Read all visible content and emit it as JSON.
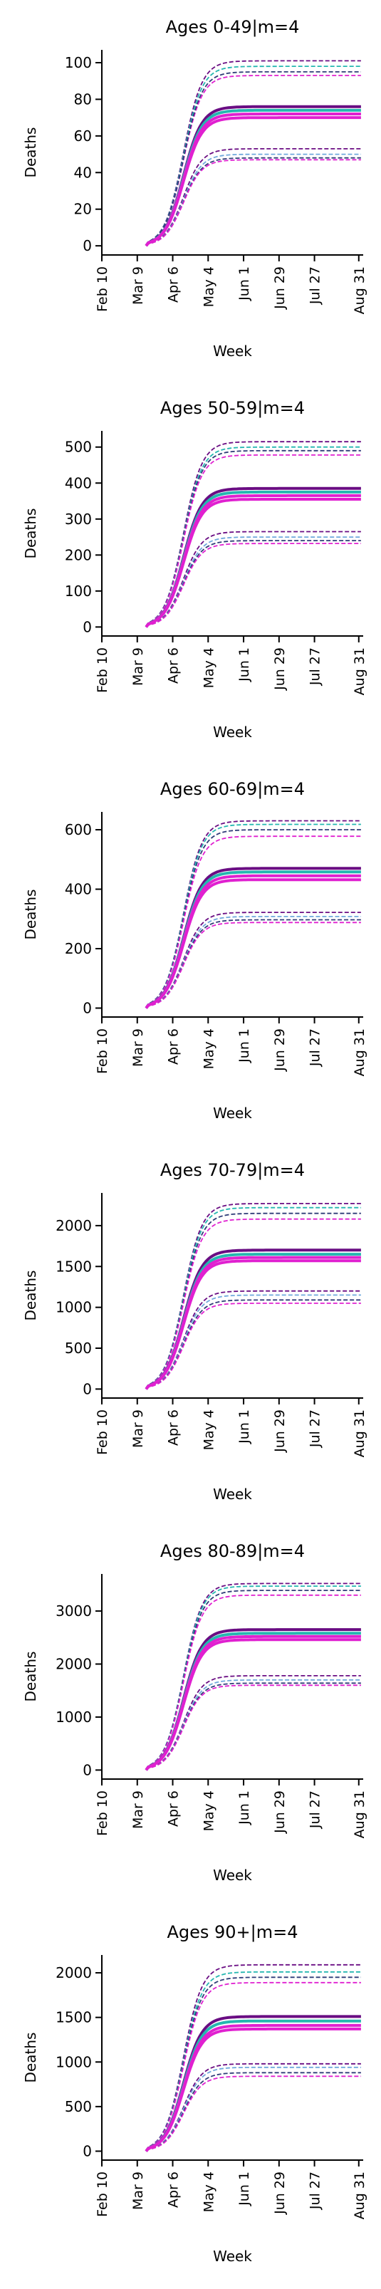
{
  "week_axis": {
    "xlabel": "Week",
    "tick_labels": [
      "Feb 10",
      "Mar 9",
      "Apr 6",
      "May 4",
      "Jun 1",
      "Jun 29",
      "Jul 27",
      "Aug 31"
    ],
    "tick_weeks": [
      0,
      4,
      8,
      12,
      16,
      20,
      24,
      29
    ],
    "xlim": [
      0,
      29.5
    ]
  },
  "colors": {
    "purple": "#6a0d83",
    "magenta": "#e020d0",
    "teal": "#25b7b0",
    "darkblue": "#2f3c78",
    "lightblue": "#6fa8dc"
  },
  "chart_data": [
    {
      "type": "line",
      "title": "Ages 0-49|m=4",
      "ylabel": "Deaths",
      "xlabel": "Week",
      "ylim": [
        -5,
        107
      ],
      "yticks": [
        0,
        20,
        40,
        60,
        80,
        100
      ],
      "series": [
        {
          "style": "solid",
          "color": "purple",
          "plateau": 76
        },
        {
          "style": "solid",
          "color": "teal",
          "plateau": 74
        },
        {
          "style": "solid",
          "color": "magenta",
          "plateau": 72
        },
        {
          "style": "solid",
          "color": "magenta",
          "plateau": 70
        },
        {
          "style": "dashed",
          "color": "purple",
          "plateau": 101
        },
        {
          "style": "dashed",
          "color": "teal",
          "plateau": 98
        },
        {
          "style": "dashed",
          "color": "magenta",
          "plateau": 93
        },
        {
          "style": "dashed",
          "color": "darkblue",
          "plateau": 95
        },
        {
          "style": "dashed",
          "color": "purple",
          "plateau": 53
        },
        {
          "style": "dashed",
          "color": "lightblue",
          "plateau": 50
        },
        {
          "style": "dashed",
          "color": "darkblue",
          "plateau": 48
        },
        {
          "style": "dashed",
          "color": "magenta",
          "plateau": 47
        }
      ]
    },
    {
      "type": "line",
      "title": "Ages 50-59|m=4",
      "ylabel": "Deaths",
      "xlabel": "Week",
      "ylim": [
        -25,
        545
      ],
      "yticks": [
        0,
        100,
        200,
        300,
        400,
        500
      ],
      "series": [
        {
          "style": "solid",
          "color": "purple",
          "plateau": 385
        },
        {
          "style": "solid",
          "color": "teal",
          "plateau": 375
        },
        {
          "style": "solid",
          "color": "magenta",
          "plateau": 365
        },
        {
          "style": "solid",
          "color": "magenta",
          "plateau": 355
        },
        {
          "style": "dashed",
          "color": "purple",
          "plateau": 515
        },
        {
          "style": "dashed",
          "color": "teal",
          "plateau": 500
        },
        {
          "style": "dashed",
          "color": "darkblue",
          "plateau": 490
        },
        {
          "style": "dashed",
          "color": "magenta",
          "plateau": 478
        },
        {
          "style": "dashed",
          "color": "purple",
          "plateau": 265
        },
        {
          "style": "dashed",
          "color": "lightblue",
          "plateau": 250
        },
        {
          "style": "dashed",
          "color": "darkblue",
          "plateau": 240
        },
        {
          "style": "dashed",
          "color": "magenta",
          "plateau": 232
        }
      ]
    },
    {
      "type": "line",
      "title": "Ages 60-69|m=4",
      "ylabel": "Deaths",
      "xlabel": "Week",
      "ylim": [
        -30,
        660
      ],
      "yticks": [
        0,
        200,
        400,
        600
      ],
      "series": [
        {
          "style": "solid",
          "color": "purple",
          "plateau": 470
        },
        {
          "style": "solid",
          "color": "teal",
          "plateau": 458
        },
        {
          "style": "solid",
          "color": "magenta",
          "plateau": 445
        },
        {
          "style": "solid",
          "color": "magenta",
          "plateau": 432
        },
        {
          "style": "dashed",
          "color": "purple",
          "plateau": 630
        },
        {
          "style": "dashed",
          "color": "teal",
          "plateau": 618
        },
        {
          "style": "dashed",
          "color": "darkblue",
          "plateau": 600
        },
        {
          "style": "dashed",
          "color": "magenta",
          "plateau": 578
        },
        {
          "style": "dashed",
          "color": "purple",
          "plateau": 322
        },
        {
          "style": "dashed",
          "color": "lightblue",
          "plateau": 308
        },
        {
          "style": "dashed",
          "color": "darkblue",
          "plateau": 297
        },
        {
          "style": "dashed",
          "color": "magenta",
          "plateau": 288
        }
      ]
    },
    {
      "type": "line",
      "title": "Ages 70-79|m=4",
      "ylabel": "Deaths",
      "xlabel": "Week",
      "ylim": [
        -110,
        2400
      ],
      "yticks": [
        0,
        500,
        1000,
        1500,
        2000
      ],
      "series": [
        {
          "style": "solid",
          "color": "purple",
          "plateau": 1700
        },
        {
          "style": "solid",
          "color": "teal",
          "plateau": 1650
        },
        {
          "style": "solid",
          "color": "magenta",
          "plateau": 1610
        },
        {
          "style": "solid",
          "color": "magenta",
          "plateau": 1570
        },
        {
          "style": "dashed",
          "color": "purple",
          "plateau": 2270
        },
        {
          "style": "dashed",
          "color": "teal",
          "plateau": 2220
        },
        {
          "style": "dashed",
          "color": "darkblue",
          "plateau": 2150
        },
        {
          "style": "dashed",
          "color": "magenta",
          "plateau": 2080
        },
        {
          "style": "dashed",
          "color": "purple",
          "plateau": 1200
        },
        {
          "style": "dashed",
          "color": "lightblue",
          "plateau": 1150
        },
        {
          "style": "dashed",
          "color": "darkblue",
          "plateau": 1090
        },
        {
          "style": "dashed",
          "color": "magenta",
          "plateau": 1050
        }
      ]
    },
    {
      "type": "line",
      "title": "Ages 80-89|m=4",
      "ylabel": "Deaths",
      "xlabel": "Week",
      "ylim": [
        -170,
        3700
      ],
      "yticks": [
        0,
        1000,
        2000,
        3000
      ],
      "series": [
        {
          "style": "solid",
          "color": "purple",
          "plateau": 2650
        },
        {
          "style": "solid",
          "color": "teal",
          "plateau": 2580
        },
        {
          "style": "solid",
          "color": "magenta",
          "plateau": 2520
        },
        {
          "style": "solid",
          "color": "magenta",
          "plateau": 2460
        },
        {
          "style": "dashed",
          "color": "purple",
          "plateau": 3520
        },
        {
          "style": "dashed",
          "color": "teal",
          "plateau": 3470
        },
        {
          "style": "dashed",
          "color": "darkblue",
          "plateau": 3390
        },
        {
          "style": "dashed",
          "color": "magenta",
          "plateau": 3300
        },
        {
          "style": "dashed",
          "color": "purple",
          "plateau": 1780
        },
        {
          "style": "dashed",
          "color": "lightblue",
          "plateau": 1700
        },
        {
          "style": "dashed",
          "color": "darkblue",
          "plateau": 1640
        },
        {
          "style": "dashed",
          "color": "magenta",
          "plateau": 1600
        }
      ]
    },
    {
      "type": "line",
      "title": "Ages 90+|m=4",
      "ylabel": "Deaths",
      "xlabel": "Week",
      "ylim": [
        -100,
        2200
      ],
      "yticks": [
        0,
        500,
        1000,
        1500,
        2000
      ],
      "series": [
        {
          "style": "solid",
          "color": "purple",
          "plateau": 1510
        },
        {
          "style": "solid",
          "color": "teal",
          "plateau": 1460
        },
        {
          "style": "solid",
          "color": "magenta",
          "plateau": 1410
        },
        {
          "style": "solid",
          "color": "magenta",
          "plateau": 1370
        },
        {
          "style": "dashed",
          "color": "purple",
          "plateau": 2090
        },
        {
          "style": "dashed",
          "color": "teal",
          "plateau": 2010
        },
        {
          "style": "dashed",
          "color": "darkblue",
          "plateau": 1950
        },
        {
          "style": "dashed",
          "color": "magenta",
          "plateau": 1890
        },
        {
          "style": "dashed",
          "color": "purple",
          "plateau": 980
        },
        {
          "style": "dashed",
          "color": "lightblue",
          "plateau": 940
        },
        {
          "style": "dashed",
          "color": "darkblue",
          "plateau": 880
        },
        {
          "style": "dashed",
          "color": "magenta",
          "plateau": 840
        }
      ]
    }
  ]
}
